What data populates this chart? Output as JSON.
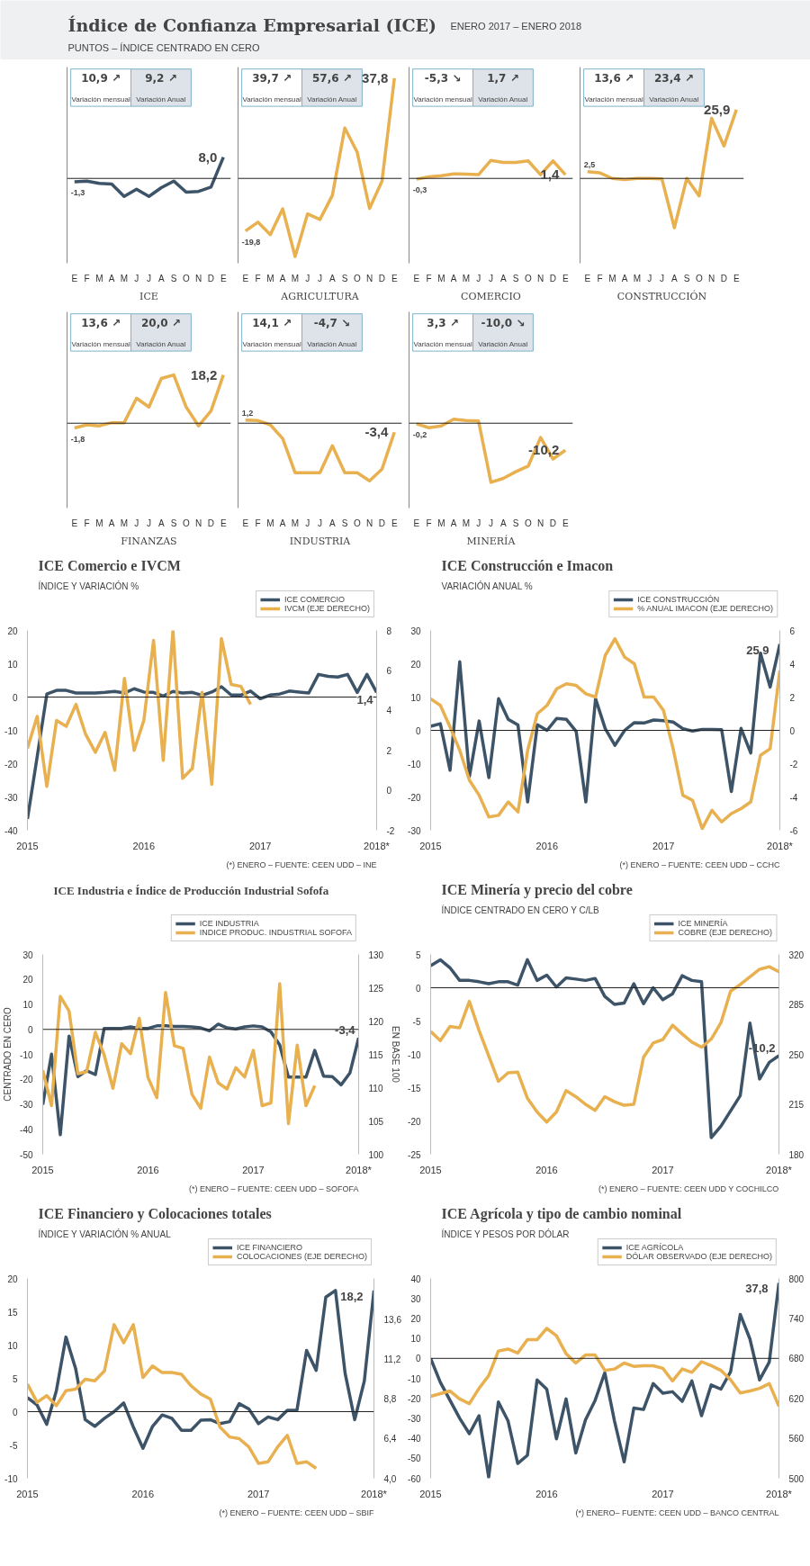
{
  "chart_data": [
    {
      "type": "other",
      "title": "Índice de Confianza Empresarial (ICE)",
      "subtitle": "PUNTOS – ÍNDICE CENTRADO EN CERO",
      "annotations": [
        "ENERO 2017 – ENERO 2018"
      ]
    },
    {
      "type": "line",
      "xlabel": "ICE",
      "categories": [
        "E",
        "F",
        "M",
        "A",
        "M",
        "J",
        "J",
        "A",
        "S",
        "O",
        "N",
        "D",
        "E"
      ],
      "ylim": [
        -32,
        42
      ],
      "tick_labels": "x",
      "ref_lines": [
        {
          "axis": "y",
          "value": 0
        }
      ],
      "annotations": [
        "10,9 ↗",
        "Variación mensual",
        "9,2 ↗",
        "Variación Anual"
      ],
      "series": [
        {
          "color": "#3d5468",
          "values": [
            -1.3,
            -1.0,
            -1.9,
            -2.1,
            -6.8,
            -4.1,
            -6.8,
            -3.5,
            -1.0,
            -5.2,
            -4.9,
            -3.3,
            8.0
          ],
          "value_labels": [
            "-1,3",
            null,
            null,
            null,
            null,
            null,
            null,
            null,
            null,
            null,
            null,
            null,
            "8,0"
          ]
        }
      ]
    },
    {
      "type": "line",
      "xlabel": "AGRICULTURA",
      "categories": [
        "E",
        "F",
        "M",
        "A",
        "M",
        "J",
        "J",
        "A",
        "S",
        "O",
        "N",
        "D",
        "E"
      ],
      "ylim": [
        -32,
        42
      ],
      "tick_labels": "x",
      "ref_lines": [
        {
          "axis": "y",
          "value": 0
        }
      ],
      "annotations": [
        "39,7 ↗",
        "Variación mensual",
        "57,6 ↗",
        "Variación Anual"
      ],
      "series": [
        {
          "color": "#e8b04f",
          "values": [
            -19.8,
            -16.5,
            -21.2,
            -11.5,
            -29.5,
            -13.4,
            -15.5,
            -6.4,
            19.0,
            9.9,
            -11.3,
            -1.0,
            37.8
          ],
          "value_labels": [
            "-19,8",
            null,
            null,
            null,
            null,
            null,
            null,
            null,
            null,
            null,
            null,
            null,
            "37,8"
          ]
        }
      ]
    },
    {
      "type": "line",
      "xlabel": "COMERCIO",
      "categories": [
        "E",
        "F",
        "M",
        "A",
        "M",
        "J",
        "J",
        "A",
        "S",
        "O",
        "N",
        "D",
        "E"
      ],
      "ylim": [
        -32,
        42
      ],
      "tick_labels": "x",
      "ref_lines": [
        {
          "axis": "y",
          "value": 0
        }
      ],
      "annotations": [
        "-5,3 ↘",
        "Variación mensual",
        "1,7 ↗",
        "Variación Anual"
      ],
      "series": [
        {
          "color": "#e8b04f",
          "values": [
            -0.3,
            0.6,
            1.0,
            1.7,
            1.6,
            1.4,
            6.8,
            6.0,
            6.0,
            6.6,
            1.4,
            6.6,
            1.4
          ],
          "value_labels": [
            "-0,3",
            null,
            null,
            null,
            null,
            null,
            null,
            null,
            null,
            null,
            null,
            null,
            "1,4"
          ]
        }
      ]
    },
    {
      "type": "line",
      "xlabel": "CONSTRUCCIÓN",
      "categories": [
        "E",
        "F",
        "M",
        "A",
        "M",
        "J",
        "J",
        "A",
        "S",
        "O",
        "N",
        "D",
        "E"
      ],
      "ylim": [
        -32,
        42
      ],
      "tick_labels": "x",
      "ref_lines": [
        {
          "axis": "y",
          "value": 0
        }
      ],
      "annotations": [
        "13,6 ↗",
        "Variación mensual",
        "23,4 ↗",
        "Variación Anual"
      ],
      "series": [
        {
          "color": "#e8b04f",
          "values": [
            2.5,
            2.1,
            0,
            -0.4,
            0,
            0,
            -0.2,
            -18.6,
            0,
            -6.6,
            22.7,
            12.2,
            25.9
          ],
          "value_labels": [
            "2,5",
            null,
            null,
            null,
            null,
            null,
            null,
            null,
            null,
            null,
            null,
            null,
            "25,9"
          ]
        }
      ]
    },
    {
      "type": "line",
      "xlabel": "FINANZAS",
      "categories": [
        "E",
        "F",
        "M",
        "A",
        "M",
        "J",
        "J",
        "A",
        "S",
        "O",
        "N",
        "D",
        "E"
      ],
      "ylim": [
        -32,
        42
      ],
      "tick_labels": "x",
      "ref_lines": [
        {
          "axis": "y",
          "value": 0
        }
      ],
      "annotations": [
        "13,6 ↗",
        "Variación mensual",
        "20,0 ↗",
        "Variación Anual"
      ],
      "series": [
        {
          "color": "#e8b04f",
          "values": [
            -1.8,
            -0.6,
            -1.0,
            0.2,
            0.2,
            9.4,
            6.1,
            16.9,
            18.2,
            6.1,
            -1.0,
            4.6,
            18.2
          ],
          "value_labels": [
            "-1,8",
            null,
            null,
            null,
            null,
            null,
            null,
            null,
            null,
            null,
            null,
            null,
            "18,2"
          ]
        }
      ]
    },
    {
      "type": "line",
      "xlabel": "INDUSTRIA",
      "categories": [
        "E",
        "F",
        "M",
        "A",
        "M",
        "J",
        "J",
        "A",
        "S",
        "O",
        "N",
        "D",
        "E"
      ],
      "ylim": [
        -32,
        42
      ],
      "tick_labels": "x",
      "ref_lines": [
        {
          "axis": "y",
          "value": 0
        }
      ],
      "annotations": [
        "14,1 ↗",
        "Variación mensual",
        "-4,7 ↘",
        "Variación Anual"
      ],
      "series": [
        {
          "color": "#e8b04f",
          "values": [
            1.2,
            1.0,
            -0.6,
            -5.8,
            -18.7,
            -18.7,
            -18.7,
            -8.5,
            -18.7,
            -18.7,
            -21.7,
            -17.3,
            -3.4
          ],
          "value_labels": [
            "1,2",
            null,
            null,
            null,
            null,
            null,
            null,
            null,
            null,
            null,
            null,
            null,
            "-3,4"
          ]
        }
      ]
    },
    {
      "type": "line",
      "xlabel": "MINERÍA",
      "categories": [
        "E",
        "F",
        "M",
        "A",
        "M",
        "J",
        "J",
        "A",
        "S",
        "O",
        "N",
        "D",
        "E"
      ],
      "ylim": [
        -32,
        42
      ],
      "tick_labels": "x",
      "ref_lines": [
        {
          "axis": "y",
          "value": 0
        }
      ],
      "annotations": [
        "3,3 ↗",
        "Variación mensual",
        "-10,0 ↘",
        "Variación Anual"
      ],
      "series": [
        {
          "color": "#e8b04f",
          "values": [
            -0.2,
            -1.7,
            -1.0,
            1.5,
            1.0,
            0.8,
            -22.3,
            -20.8,
            -18.3,
            -16.2,
            -5.4,
            -13.5,
            -10.2
          ],
          "value_labels": [
            "-0,2",
            null,
            null,
            null,
            null,
            null,
            null,
            null,
            null,
            null,
            null,
            null,
            "-10,2"
          ]
        }
      ]
    },
    {
      "type": "line",
      "title": "ICE Comercio e IVCM",
      "subtitle": "ÍNDICE Y VARIACIÓN %",
      "legend": "top",
      "x": [
        "2015-01",
        "2015-02",
        "2015-03",
        "2015-04",
        "2015-05",
        "2015-06",
        "2015-07",
        "2015-08",
        "2015-09",
        "2015-10",
        "2015-11",
        "2015-12",
        "2016-01",
        "2016-02",
        "2016-03",
        "2016-04",
        "2016-05",
        "2016-06",
        "2016-07",
        "2016-08",
        "2016-09",
        "2016-10",
        "2016-11",
        "2016-12",
        "2017-01",
        "2017-02",
        "2017-03",
        "2017-04",
        "2017-05",
        "2017-06",
        "2017-07",
        "2017-08",
        "2017-09",
        "2017-10",
        "2017-11",
        "2017-12",
        "2018-01"
      ],
      "xlim": [
        "2015-01",
        "2018-01"
      ],
      "xticks": [
        {
          "value": "2015-01",
          "label": "2015"
        },
        {
          "value": "2016-01",
          "label": "2016"
        },
        {
          "value": "2017-01",
          "label": "2017"
        },
        {
          "value": "2018-01",
          "label": "2018*"
        }
      ],
      "ylim": [
        -40,
        20
      ],
      "yticks": [
        -40,
        -30,
        -20,
        -10,
        0,
        10,
        20
      ],
      "y2lim": [
        -2,
        8
      ],
      "y2ticks": [
        -2,
        0,
        2,
        4,
        6,
        8
      ],
      "ref_lines": [
        {
          "axis": "y",
          "value": 0
        }
      ],
      "annotations": [
        {
          "text": "1,4",
          "x": "2018-01",
          "y": 1.4
        },
        "(*) ENERO – FUENTE: CEEN UDD – INE"
      ],
      "series": [
        {
          "name": "ICE COMERCIO",
          "color": "#3d5468",
          "values": [
            -36.6,
            -18,
            0.9,
            2,
            2,
            1.2,
            1.2,
            1.2,
            1.4,
            1.7,
            1.2,
            2.5,
            1.5,
            1.4,
            0.3,
            1.7,
            1.2,
            1.4,
            0.5,
            1.5,
            3.1,
            0.6,
            0.6,
            1.8,
            -0.5,
            0.6,
            0.9,
            1.8,
            1.5,
            1.2,
            6.8,
            6.2,
            6.0,
            6.8,
            1.4,
            6.8,
            1.4
          ]
        },
        {
          "name": "IVCM (EJE DERECHO)",
          "color": "#e8b04f",
          "axis": "y2",
          "values": [
            2.1,
            3.7,
            0.2,
            3.5,
            3.2,
            4.3,
            2.8,
            1.9,
            2.9,
            1.0,
            5.6,
            2.0,
            3.5,
            7.5,
            1.5,
            8.0,
            0.6,
            1.1,
            4.9,
            0.3,
            7.6,
            5.3,
            5.2,
            4.3,
            null,
            null,
            null,
            null,
            null,
            null,
            null,
            null,
            null,
            null,
            null,
            null,
            null
          ]
        }
      ]
    },
    {
      "type": "line",
      "title": "ICE Construcción e Imacon",
      "subtitle": "VARIACIÓN ANUAL %",
      "legend": "top",
      "x": [
        "2015-01",
        "2015-02",
        "2015-03",
        "2015-04",
        "2015-05",
        "2015-06",
        "2015-07",
        "2015-08",
        "2015-09",
        "2015-10",
        "2015-11",
        "2015-12",
        "2016-01",
        "2016-02",
        "2016-03",
        "2016-04",
        "2016-05",
        "2016-06",
        "2016-07",
        "2016-08",
        "2016-09",
        "2016-10",
        "2016-11",
        "2016-12",
        "2017-01",
        "2017-02",
        "2017-03",
        "2017-04",
        "2017-05",
        "2017-06",
        "2017-07",
        "2017-08",
        "2017-09",
        "2017-10",
        "2017-11",
        "2017-12",
        "2018-01"
      ],
      "xlim": [
        "2015-01",
        "2018-01"
      ],
      "xticks": [
        {
          "value": "2015-01",
          "label": "2015"
        },
        {
          "value": "2016-01",
          "label": "2016"
        },
        {
          "value": "2017-01",
          "label": "2017"
        },
        {
          "value": "2018-01",
          "label": "2018*"
        }
      ],
      "ylim": [
        -30,
        30
      ],
      "yticks": [
        -30,
        -20,
        -10,
        0,
        10,
        20,
        30
      ],
      "y2lim": [
        -6,
        6
      ],
      "y2ticks": [
        -6,
        -4,
        -2,
        0,
        2,
        4,
        6
      ],
      "ref_lines": [
        {
          "axis": "y",
          "value": 0
        }
      ],
      "annotations": [
        {
          "text": "25,9",
          "x": "2018-01",
          "y": 25.9
        },
        "(*) ENERO – FUENTE: CEEN UDD – CCHC"
      ],
      "series": [
        {
          "name": "ICE CONSTRUCCIÓN",
          "color": "#3d5468",
          "values": [
            1.2,
            2.0,
            -12,
            20.6,
            -13.8,
            2.8,
            -14.2,
            9.5,
            3.3,
            1.6,
            -21.5,
            1.7,
            0,
            3.6,
            3.3,
            -0.3,
            -21.5,
            9.5,
            0.5,
            -4.5,
            0,
            2.3,
            2.2,
            3.1,
            2.9,
            2.5,
            0.5,
            -0.2,
            0.3,
            0.3,
            0.2,
            -18.4,
            0.6,
            -6.8,
            23.2,
            13.0,
            25.9
          ]
        },
        {
          "name": "% ANUAL IMACON (EJE DERECHO)",
          "color": "#e8b04f",
          "axis": "y2",
          "values": [
            1.9,
            1.5,
            0.2,
            -1.2,
            -3.0,
            -3.9,
            -5.2,
            -5.1,
            -4.3,
            -4.9,
            -1.2,
            1.0,
            1.5,
            2.5,
            2.8,
            2.7,
            2.2,
            2.0,
            4.5,
            5.5,
            4.4,
            4.0,
            2.0,
            2.0,
            1.2,
            -1.1,
            -3.9,
            -4.2,
            -5.9,
            -4.8,
            -5.5,
            -5.0,
            -4.7,
            -4.3,
            -1.5,
            -1.1,
            3.6
          ]
        }
      ]
    },
    {
      "type": "line",
      "title": "ICE Industria e Índice de Producción Industrial Sofofa",
      "ylabel": "CENTRADO EN CERO",
      "y2label": "EN BASE 100",
      "legend": "top",
      "x": [
        "2015-01",
        "2015-02",
        "2015-03",
        "2015-04",
        "2015-05",
        "2015-06",
        "2015-07",
        "2015-08",
        "2015-09",
        "2015-10",
        "2015-11",
        "2015-12",
        "2016-01",
        "2016-02",
        "2016-03",
        "2016-04",
        "2016-05",
        "2016-06",
        "2016-07",
        "2016-08",
        "2016-09",
        "2016-10",
        "2016-11",
        "2016-12",
        "2017-01",
        "2017-02",
        "2017-03",
        "2017-04",
        "2017-05",
        "2017-06",
        "2017-07",
        "2017-08",
        "2017-09",
        "2017-10",
        "2017-11",
        "2017-12",
        "2018-01"
      ],
      "xlim": [
        "2015-01",
        "2018-01"
      ],
      "xticks": [
        {
          "value": "2015-01",
          "label": "2015"
        },
        {
          "value": "2016-01",
          "label": "2016"
        },
        {
          "value": "2017-01",
          "label": "2017"
        },
        {
          "value": "2018-01",
          "label": "2018*"
        }
      ],
      "ylim": [
        -50,
        30
      ],
      "yticks": [
        -50,
        -40,
        -30,
        -20,
        -10,
        0,
        10,
        20,
        30
      ],
      "y2lim": [
        100,
        130
      ],
      "y2ticks": [
        100,
        105,
        110,
        115,
        120,
        125,
        130
      ],
      "ref_lines": [
        {
          "axis": "y",
          "value": 0
        }
      ],
      "annotations": [
        {
          "text": "-3,4",
          "x": "2018-01",
          "y": -3.4
        },
        "(*) ENERO – FUENTE: CEEN UDD – SOFOFA"
      ],
      "series": [
        {
          "name": "ICE INDUSTRIA",
          "color": "#3d5468",
          "values": [
            -30.2,
            -9.9,
            -42.2,
            -2.7,
            -18.9,
            -16.5,
            -18.1,
            0.4,
            0.4,
            0.4,
            1.0,
            0.4,
            0.4,
            1.4,
            1.4,
            1.2,
            1.2,
            1.0,
            0.6,
            -0.6,
            2.1,
            0.6,
            0.2,
            1.0,
            1.4,
            1.0,
            -1.0,
            -6.2,
            -19.1,
            -19.1,
            -19.1,
            -8.4,
            -18.7,
            -18.9,
            -22.2,
            -17.5,
            -3.4
          ]
        },
        {
          "name": "INDICE PRODUC. INDUSTRIAL SOFOFA",
          "color": "#e8b04f",
          "axis": "y2",
          "values": [
            112.6,
            107.3,
            123.7,
            121.5,
            112.1,
            112.4,
            118.3,
            114.9,
            109.9,
            116.6,
            115.1,
            120.4,
            111.5,
            108.5,
            124.3,
            116.3,
            115.9,
            109.0,
            106.9,
            114.6,
            110.7,
            109.8,
            113.0,
            111.6,
            115.6,
            107.3,
            107.7,
            125.6,
            104.6,
            116.4,
            107.3,
            110.3,
            null,
            null,
            null,
            null,
            null
          ]
        }
      ]
    },
    {
      "type": "line",
      "title": "ICE Minería y precio del cobre",
      "subtitle": "ÍNDICE CENTRADO EN CERO Y C/LB",
      "legend": "top",
      "x": [
        "2015-01",
        "2015-02",
        "2015-03",
        "2015-04",
        "2015-05",
        "2015-06",
        "2015-07",
        "2015-08",
        "2015-09",
        "2015-10",
        "2015-11",
        "2015-12",
        "2016-01",
        "2016-02",
        "2016-03",
        "2016-04",
        "2016-05",
        "2016-06",
        "2016-07",
        "2016-08",
        "2016-09",
        "2016-10",
        "2016-11",
        "2016-12",
        "2017-01",
        "2017-02",
        "2017-03",
        "2017-04",
        "2017-05",
        "2017-06",
        "2017-07",
        "2017-08",
        "2017-09",
        "2017-10",
        "2017-11",
        "2017-12",
        "2018-01"
      ],
      "xlim": [
        "2015-01",
        "2018-01"
      ],
      "xticks": [
        {
          "value": "2015-01",
          "label": "2015"
        },
        {
          "value": "2016-01",
          "label": "2016"
        },
        {
          "value": "2017-01",
          "label": "2017"
        },
        {
          "value": "2018-01",
          "label": "2018*"
        }
      ],
      "ylim": [
        -25,
        5
      ],
      "yticks": [
        -25,
        -20,
        -15,
        -10,
        -5,
        0,
        5
      ],
      "y2lim": [
        180,
        320
      ],
      "y2ticks": [
        180,
        215,
        250,
        285,
        320
      ],
      "ref_lines": [
        {
          "axis": "y",
          "value": 0
        }
      ],
      "annotations": [
        {
          "text": "-10,2",
          "x": "2018-01",
          "y": -10.2
        },
        "(*) ENERO – FUENTE: CEEN UDD Y COCHILCO"
      ],
      "series": [
        {
          "name": "ICE MINERÍA",
          "color": "#3d5468",
          "values": [
            3.3,
            4.2,
            3.0,
            1.1,
            1.1,
            0.9,
            0.6,
            0.9,
            0.9,
            0.4,
            4.2,
            1.1,
            1.9,
            0.1,
            1.5,
            1.3,
            1.1,
            1.4,
            -1.3,
            -2.5,
            -2.3,
            0.6,
            -2.4,
            0,
            -1.8,
            -0.9,
            1.8,
            1.1,
            0.9,
            -22.5,
            -20.8,
            -18.5,
            -16.2,
            -5.3,
            -13.7,
            -11.2,
            -10.2
          ]
        },
        {
          "name": "COBRE (EJE DERECHO)",
          "color": "#e8b04f",
          "axis": "y2",
          "values": [
            266.1,
            259.6,
            269.6,
            268.6,
            287.1,
            266.8,
            248.9,
            231.1,
            237.1,
            237.5,
            219.3,
            209.6,
            202.5,
            209.6,
            224.6,
            220.4,
            215.0,
            210.7,
            220.4,
            216.8,
            214.3,
            215.0,
            247.9,
            257.9,
            260.4,
            270.4,
            264.3,
            258.6,
            255.0,
            260.7,
            272.1,
            294.3,
            298.9,
            304.3,
            309.6,
            311.4,
            307.9
          ]
        }
      ]
    },
    {
      "type": "line",
      "title": "ICE Financiero y Colocaciones totales",
      "subtitle": "ÍNDICE Y VARIACIÓN % ANUAL",
      "legend": "top",
      "x": [
        "2015-01",
        "2015-02",
        "2015-03",
        "2015-04",
        "2015-05",
        "2015-06",
        "2015-07",
        "2015-08",
        "2015-09",
        "2015-10",
        "2015-11",
        "2015-12",
        "2016-01",
        "2016-02",
        "2016-03",
        "2016-04",
        "2016-05",
        "2016-06",
        "2016-07",
        "2016-08",
        "2016-09",
        "2016-10",
        "2016-11",
        "2016-12",
        "2017-01",
        "2017-02",
        "2017-03",
        "2017-04",
        "2017-05",
        "2017-06",
        "2017-07",
        "2017-08",
        "2017-09",
        "2017-10",
        "2017-11",
        "2017-12",
        "2018-01"
      ],
      "xlim": [
        "2015-01",
        "2018-01"
      ],
      "xticks": [
        {
          "value": "2015-01",
          "label": "2015"
        },
        {
          "value": "2016-01",
          "label": "2016"
        },
        {
          "value": "2017-01",
          "label": "2017"
        },
        {
          "value": "2018-01",
          "label": "2018*"
        }
      ],
      "ylim": [
        -10,
        20
      ],
      "yticks": [
        -10,
        -5,
        0,
        5,
        10,
        15,
        20
      ],
      "y2lim": [
        4.0,
        16.1
      ],
      "y2ticks": [
        {
          "value": 4.0,
          "label": "4,0"
        },
        {
          "value": 6.4,
          "label": "6,4"
        },
        {
          "value": 8.8,
          "label": "8,8"
        },
        {
          "value": 11.2,
          "label": "11,2"
        },
        {
          "value": 13.6,
          "label": "13,6"
        }
      ],
      "ref_lines": [
        {
          "axis": "y",
          "value": 0
        }
      ],
      "annotations": [
        {
          "text": "18,2",
          "x": "2018-01",
          "y": 18.2
        },
        "(*) ENERO – FUENTE: CEEN UDD – SBIF"
      ],
      "series": [
        {
          "name": "ICE FINANCIERO",
          "color": "#3d5468",
          "values": [
            2.1,
            1.0,
            -1.9,
            3.1,
            11.2,
            6.5,
            -1.2,
            -2.2,
            -1.0,
            0,
            1.3,
            -2.3,
            -5.5,
            -2.2,
            -0.5,
            -1.0,
            -2.8,
            -2.8,
            -1.3,
            -1.2,
            -1.8,
            -1.5,
            1.2,
            0.4,
            -1.8,
            -0.8,
            -1.2,
            0.2,
            0.2,
            9.2,
            6.2,
            17.2,
            18.2,
            5.8,
            -1.2,
            4.6,
            18.2
          ]
        },
        {
          "name": "COLOCACIONES (EJE DERECHO)",
          "color": "#e8b04f",
          "axis": "y2",
          "values": [
            9.7,
            8.6,
            9.0,
            8.4,
            9.3,
            9.4,
            10.0,
            9.9,
            10.5,
            13.3,
            12.2,
            13.3,
            10.1,
            10.8,
            10.4,
            10.4,
            10.3,
            9.6,
            9.1,
            8.8,
            7.1,
            6.5,
            6.4,
            5.9,
            4.9,
            5.0,
            5.9,
            6.6,
            4.9,
            5.0,
            4.6,
            null,
            null,
            null,
            null,
            null,
            null
          ]
        }
      ]
    },
    {
      "type": "line",
      "title": "ICE Agrícola y tipo de cambio nominal",
      "subtitle": "ÍNDICE Y PESOS POR DÓLAR",
      "legend": "top",
      "x": [
        "2015-01",
        "2015-02",
        "2015-03",
        "2015-04",
        "2015-05",
        "2015-06",
        "2015-07",
        "2015-08",
        "2015-09",
        "2015-10",
        "2015-11",
        "2015-12",
        "2016-01",
        "2016-02",
        "2016-03",
        "2016-04",
        "2016-05",
        "2016-06",
        "2016-07",
        "2016-08",
        "2016-09",
        "2016-10",
        "2016-11",
        "2016-12",
        "2017-01",
        "2017-02",
        "2017-03",
        "2017-04",
        "2017-05",
        "2017-06",
        "2017-07",
        "2017-08",
        "2017-09",
        "2017-10",
        "2017-11",
        "2017-12",
        "2018-01"
      ],
      "xlim": [
        "2015-01",
        "2018-01"
      ],
      "xticks": [
        {
          "value": "2015-01",
          "label": "2015"
        },
        {
          "value": "2016-01",
          "label": "2016"
        },
        {
          "value": "2017-01",
          "label": "2017"
        },
        {
          "value": "2018-01",
          "label": "2018*"
        }
      ],
      "ylim": [
        -60,
        40
      ],
      "yticks": [
        -60,
        -50,
        -40,
        -30,
        -20,
        -10,
        0,
        10,
        20,
        30,
        40
      ],
      "y2lim": [
        500,
        800
      ],
      "y2ticks": [
        500,
        560,
        620,
        680,
        740,
        800
      ],
      "ref_lines": [
        {
          "axis": "y",
          "value": 0
        }
      ],
      "annotations": [
        {
          "text": "37,8",
          "x": "2018-01",
          "y": 37.8
        },
        "(*) ENERO– FUENTE: CEEN UDD – BANCO CENTRAL"
      ],
      "series": [
        {
          "name": "ICE AGRÍCOLA",
          "color": "#3d5468",
          "values": [
            0,
            -12,
            -21,
            -30,
            -37.7,
            -28.7,
            -59.5,
            -21.8,
            -31.3,
            -52.6,
            -48.5,
            -10.8,
            -15.4,
            -40.3,
            -20.3,
            -47.4,
            -30.8,
            -21,
            -7.2,
            -31.3,
            -51.8,
            -24.9,
            -25.6,
            -12.6,
            -17.4,
            -16.7,
            -21.5,
            -11.3,
            -28.7,
            -13.3,
            -15.4,
            -6.7,
            22,
            9.7,
            -10.8,
            -1.8,
            37.8
          ]
        },
        {
          "name": "DÓLAR OBSERVADO (EJE DERECHO)",
          "color": "#e8b04f",
          "axis": "y2",
          "values": [
            623,
            627,
            631,
            619,
            612,
            635,
            654,
            691,
            694,
            688,
            708,
            708,
            725,
            714,
            687,
            673,
            685,
            685,
            662,
            664,
            673,
            668,
            669,
            669,
            665,
            646,
            664,
            659,
            675,
            669,
            662,
            648,
            628,
            631,
            635,
            642,
            608
          ]
        }
      ]
    }
  ]
}
